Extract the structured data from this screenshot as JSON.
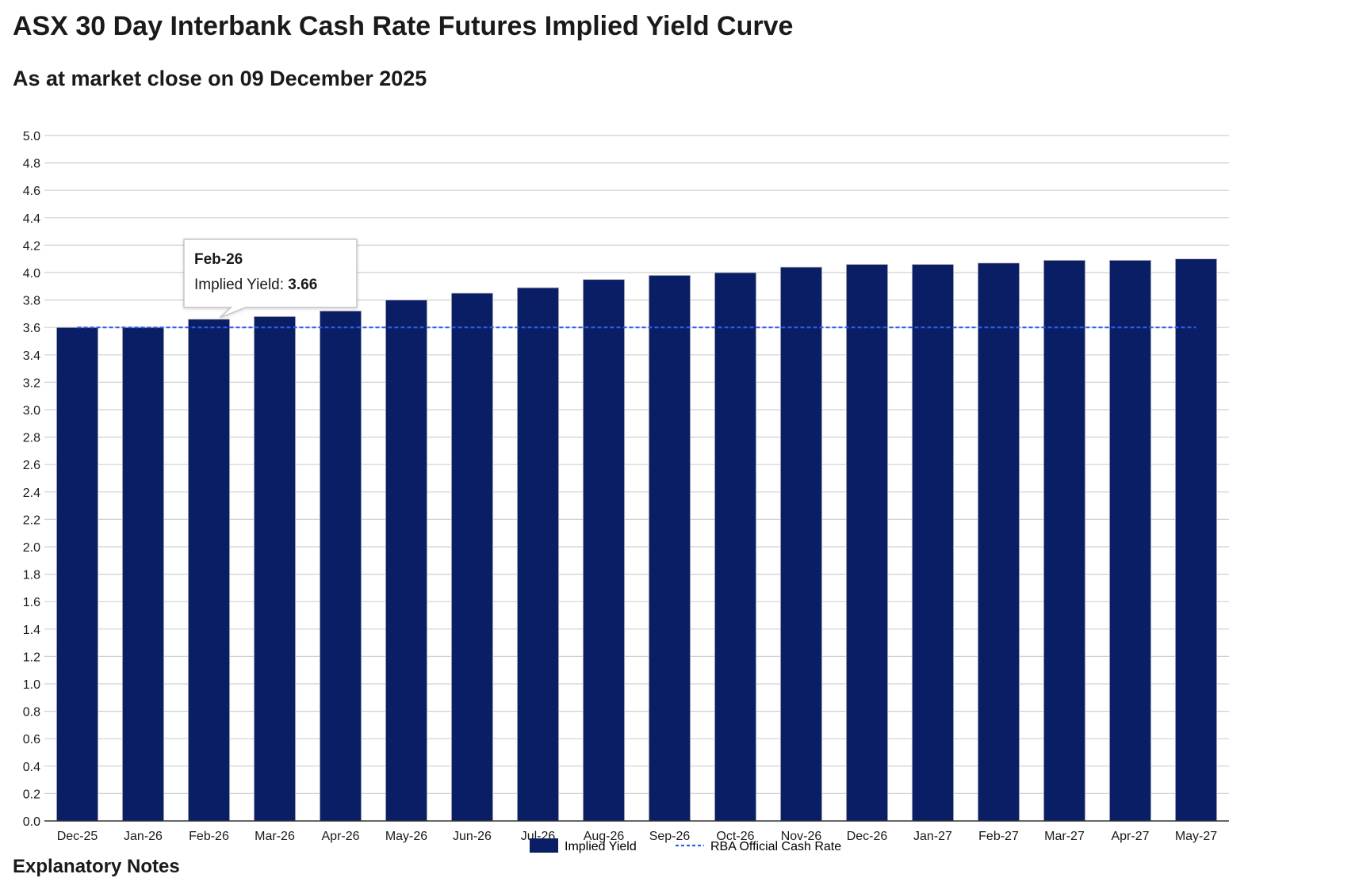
{
  "page": {
    "title": "ASX 30 Day Interbank Cash Rate Futures Implied Yield Curve",
    "subtitle": "As at market close on 09 December 2025",
    "footer_heading": "Explanatory Notes"
  },
  "colors": {
    "bar": "#0a1e66",
    "rba_line": "#2f5fe8",
    "grid": "#d0d0d0",
    "axis": "#333333"
  },
  "chart_data": {
    "type": "bar",
    "categories": [
      "Dec-25",
      "Jan-26",
      "Feb-26",
      "Mar-26",
      "Apr-26",
      "May-26",
      "Jun-26",
      "Jul-26",
      "Aug-26",
      "Sep-26",
      "Oct-26",
      "Nov-26",
      "Dec-26",
      "Jan-27",
      "Feb-27",
      "Mar-27",
      "Apr-27",
      "May-27"
    ],
    "series": [
      {
        "name": "Implied Yield",
        "kind": "bar",
        "values": [
          3.6,
          3.6,
          3.66,
          3.68,
          3.72,
          3.8,
          3.85,
          3.89,
          3.95,
          3.98,
          4.0,
          4.04,
          4.06,
          4.06,
          4.07,
          4.09,
          4.09,
          4.1
        ]
      },
      {
        "name": "RBA Official Cash Rate",
        "kind": "dashed-line",
        "values": [
          3.6,
          3.6,
          3.6,
          3.6,
          3.6,
          3.6,
          3.6,
          3.6,
          3.6,
          3.6,
          3.6,
          3.6,
          3.6,
          3.6,
          3.6,
          3.6,
          3.6,
          3.6
        ]
      }
    ],
    "ylim": [
      0,
      5.0
    ],
    "yticks": [
      "0.0",
      "0.2",
      "0.4",
      "0.6",
      "0.8",
      "1.0",
      "1.2",
      "1.4",
      "1.6",
      "1.8",
      "2.0",
      "2.2",
      "2.4",
      "2.6",
      "2.8",
      "3.0",
      "3.2",
      "3.4",
      "3.6",
      "3.8",
      "4.0",
      "4.2",
      "4.4",
      "4.6",
      "4.8",
      "5.0"
    ],
    "grid": true,
    "legend_placement": "bottom-center",
    "tooltip": {
      "category": "Feb-26",
      "label": "Implied Yield: ",
      "value": "3.66"
    }
  }
}
